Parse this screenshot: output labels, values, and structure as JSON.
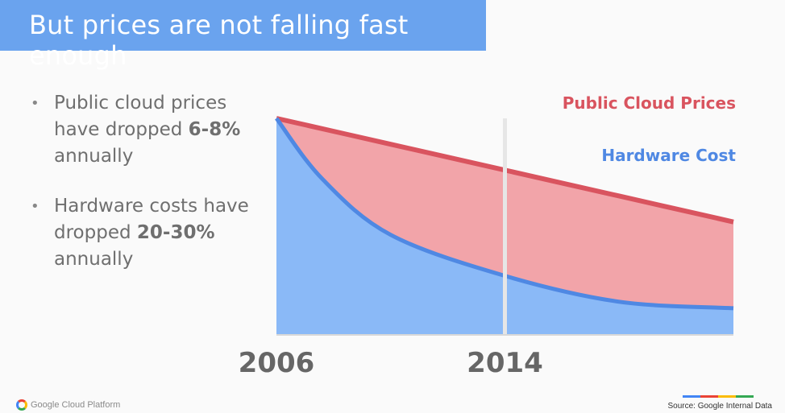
{
  "title": "But prices are not falling fast enough",
  "bullets": [
    {
      "pre": "Public cloud prices have dropped ",
      "bold": "6-8%",
      "post": " annually"
    },
    {
      "pre": "Hardware costs have dropped ",
      "bold": "20-30%",
      "post": " annually"
    }
  ],
  "bullet_symbol": "•",
  "footer": {
    "logo_text": "Google Cloud Platform",
    "source": "Source: Google Internal Data"
  },
  "colors": {
    "title_bg": "#6aa3ee",
    "cloud_line": "#d9545f",
    "cloud_fill": "#f2a4a9",
    "hw_line": "#4f88e3",
    "hw_fill": "#8ab9f7",
    "google_bar": [
      "#4285f4",
      "#ea4335",
      "#fbbc05",
      "#34a853"
    ]
  },
  "chart_data": {
    "type": "area",
    "x_ticks": [
      "2006",
      "2014"
    ],
    "series": [
      {
        "name": "Public Cloud Prices",
        "color": "#d9545f",
        "x": [
          0,
          0.25,
          0.5,
          0.75,
          1
        ],
        "y": [
          1.0,
          0.88,
          0.76,
          0.64,
          0.52
        ]
      },
      {
        "name": "Hardware Cost",
        "color": "#4f88e3",
        "x": [
          0,
          0.1,
          0.25,
          0.5,
          0.75,
          1
        ],
        "y": [
          1.0,
          0.72,
          0.46,
          0.27,
          0.15,
          0.12
        ]
      }
    ],
    "ylim": [
      0,
      1.1
    ],
    "grid": false,
    "vertical_marker": "2014"
  }
}
